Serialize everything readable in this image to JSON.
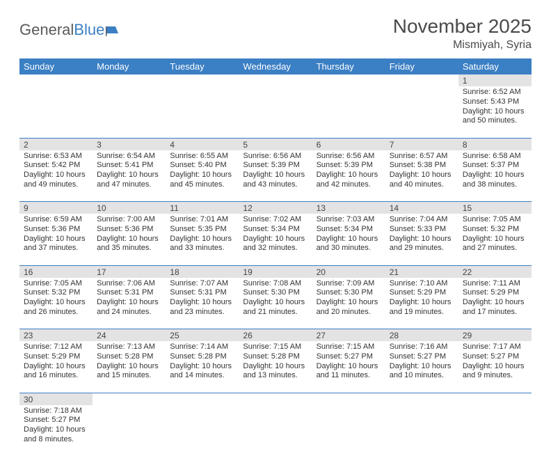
{
  "logo": {
    "text1": "General",
    "text2": "Blue"
  },
  "title": "November 2025",
  "location": "Mismiyah, Syria",
  "colors": {
    "header_bg": "#3b7fc4",
    "header_text": "#ffffff",
    "daynum_bg": "#e3e3e3",
    "rule": "#3b7fc4",
    "text": "#333333",
    "title_text": "#4a4a4a"
  },
  "typography": {
    "title_fontsize": 28,
    "location_fontsize": 16,
    "dayheader_fontsize": 13,
    "daynum_fontsize": 12,
    "cell_fontsize": 11
  },
  "day_headers": [
    "Sunday",
    "Monday",
    "Tuesday",
    "Wednesday",
    "Thursday",
    "Friday",
    "Saturday"
  ],
  "weeks": [
    [
      null,
      null,
      null,
      null,
      null,
      null,
      {
        "n": "1",
        "sunrise": "6:52 AM",
        "sunset": "5:43 PM",
        "daylight": "10 hours and 50 minutes."
      }
    ],
    [
      {
        "n": "2",
        "sunrise": "6:53 AM",
        "sunset": "5:42 PM",
        "daylight": "10 hours and 49 minutes."
      },
      {
        "n": "3",
        "sunrise": "6:54 AM",
        "sunset": "5:41 PM",
        "daylight": "10 hours and 47 minutes."
      },
      {
        "n": "4",
        "sunrise": "6:55 AM",
        "sunset": "5:40 PM",
        "daylight": "10 hours and 45 minutes."
      },
      {
        "n": "5",
        "sunrise": "6:56 AM",
        "sunset": "5:39 PM",
        "daylight": "10 hours and 43 minutes."
      },
      {
        "n": "6",
        "sunrise": "6:56 AM",
        "sunset": "5:39 PM",
        "daylight": "10 hours and 42 minutes."
      },
      {
        "n": "7",
        "sunrise": "6:57 AM",
        "sunset": "5:38 PM",
        "daylight": "10 hours and 40 minutes."
      },
      {
        "n": "8",
        "sunrise": "6:58 AM",
        "sunset": "5:37 PM",
        "daylight": "10 hours and 38 minutes."
      }
    ],
    [
      {
        "n": "9",
        "sunrise": "6:59 AM",
        "sunset": "5:36 PM",
        "daylight": "10 hours and 37 minutes."
      },
      {
        "n": "10",
        "sunrise": "7:00 AM",
        "sunset": "5:36 PM",
        "daylight": "10 hours and 35 minutes."
      },
      {
        "n": "11",
        "sunrise": "7:01 AM",
        "sunset": "5:35 PM",
        "daylight": "10 hours and 33 minutes."
      },
      {
        "n": "12",
        "sunrise": "7:02 AM",
        "sunset": "5:34 PM",
        "daylight": "10 hours and 32 minutes."
      },
      {
        "n": "13",
        "sunrise": "7:03 AM",
        "sunset": "5:34 PM",
        "daylight": "10 hours and 30 minutes."
      },
      {
        "n": "14",
        "sunrise": "7:04 AM",
        "sunset": "5:33 PM",
        "daylight": "10 hours and 29 minutes."
      },
      {
        "n": "15",
        "sunrise": "7:05 AM",
        "sunset": "5:32 PM",
        "daylight": "10 hours and 27 minutes."
      }
    ],
    [
      {
        "n": "16",
        "sunrise": "7:05 AM",
        "sunset": "5:32 PM",
        "daylight": "10 hours and 26 minutes."
      },
      {
        "n": "17",
        "sunrise": "7:06 AM",
        "sunset": "5:31 PM",
        "daylight": "10 hours and 24 minutes."
      },
      {
        "n": "18",
        "sunrise": "7:07 AM",
        "sunset": "5:31 PM",
        "daylight": "10 hours and 23 minutes."
      },
      {
        "n": "19",
        "sunrise": "7:08 AM",
        "sunset": "5:30 PM",
        "daylight": "10 hours and 21 minutes."
      },
      {
        "n": "20",
        "sunrise": "7:09 AM",
        "sunset": "5:30 PM",
        "daylight": "10 hours and 20 minutes."
      },
      {
        "n": "21",
        "sunrise": "7:10 AM",
        "sunset": "5:29 PM",
        "daylight": "10 hours and 19 minutes."
      },
      {
        "n": "22",
        "sunrise": "7:11 AM",
        "sunset": "5:29 PM",
        "daylight": "10 hours and 17 minutes."
      }
    ],
    [
      {
        "n": "23",
        "sunrise": "7:12 AM",
        "sunset": "5:29 PM",
        "daylight": "10 hours and 16 minutes."
      },
      {
        "n": "24",
        "sunrise": "7:13 AM",
        "sunset": "5:28 PM",
        "daylight": "10 hours and 15 minutes."
      },
      {
        "n": "25",
        "sunrise": "7:14 AM",
        "sunset": "5:28 PM",
        "daylight": "10 hours and 14 minutes."
      },
      {
        "n": "26",
        "sunrise": "7:15 AM",
        "sunset": "5:28 PM",
        "daylight": "10 hours and 13 minutes."
      },
      {
        "n": "27",
        "sunrise": "7:15 AM",
        "sunset": "5:27 PM",
        "daylight": "10 hours and 11 minutes."
      },
      {
        "n": "28",
        "sunrise": "7:16 AM",
        "sunset": "5:27 PM",
        "daylight": "10 hours and 10 minutes."
      },
      {
        "n": "29",
        "sunrise": "7:17 AM",
        "sunset": "5:27 PM",
        "daylight": "10 hours and 9 minutes."
      }
    ],
    [
      {
        "n": "30",
        "sunrise": "7:18 AM",
        "sunset": "5:27 PM",
        "daylight": "10 hours and 8 minutes."
      },
      null,
      null,
      null,
      null,
      null,
      null
    ]
  ],
  "labels": {
    "sunrise_prefix": "Sunrise: ",
    "sunset_prefix": "Sunset: ",
    "daylight_prefix": "Daylight: "
  }
}
